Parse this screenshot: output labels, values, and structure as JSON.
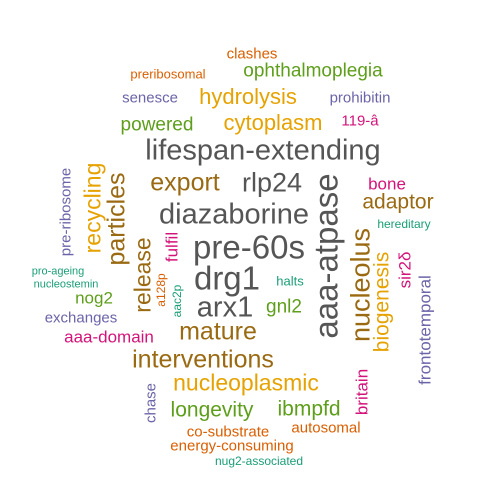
{
  "palette": {
    "gray": "#555555",
    "brown": "#9A6A12",
    "gold": "#E6A200",
    "green": "#5E9E1B",
    "orange": "#D95F02",
    "purple": "#6B64A8",
    "pink": "#D4137A",
    "teal": "#1A9E77"
  },
  "words": [
    {
      "id": "clashes",
      "text": "clashes",
      "color": "orange"
    },
    {
      "id": "preribosomal",
      "text": "preribosomal",
      "color": "orange"
    },
    {
      "id": "ophthalmoplegia",
      "text": "ophthalmoplegia",
      "color": "green"
    },
    {
      "id": "senesce",
      "text": "senesce",
      "color": "purple"
    },
    {
      "id": "hydrolysis",
      "text": "hydrolysis",
      "color": "gold"
    },
    {
      "id": "prohibitin",
      "text": "prohibitin",
      "color": "purple"
    },
    {
      "id": "powered",
      "text": "powered",
      "color": "green"
    },
    {
      "id": "cytoplasm",
      "text": "cytoplasm",
      "color": "gold"
    },
    {
      "id": "119-a",
      "text": "119-â",
      "color": "pink"
    },
    {
      "id": "lifespan-extending",
      "text": "lifespan-extending",
      "color": "gray"
    },
    {
      "id": "export",
      "text": "export",
      "color": "brown"
    },
    {
      "id": "rlp24",
      "text": "rlp24",
      "color": "gray"
    },
    {
      "id": "bone",
      "text": "bone",
      "color": "pink"
    },
    {
      "id": "adaptor",
      "text": "adaptor",
      "color": "brown"
    },
    {
      "id": "diazaborine",
      "text": "diazaborine",
      "color": "gray"
    },
    {
      "id": "hereditary",
      "text": "hereditary",
      "color": "teal"
    },
    {
      "id": "pre-60s",
      "text": "pre-60s",
      "color": "gray"
    },
    {
      "id": "drg1",
      "text": "drg1",
      "color": "gray"
    },
    {
      "id": "halts",
      "text": "halts",
      "color": "teal"
    },
    {
      "id": "arx1",
      "text": "arx1",
      "color": "gray"
    },
    {
      "id": "gnl2",
      "text": "gnl2",
      "color": "green"
    },
    {
      "id": "mature",
      "text": "mature",
      "color": "brown"
    },
    {
      "id": "nog2",
      "text": "nog2",
      "color": "green"
    },
    {
      "id": "pro-ageing",
      "text": "pro-ageing",
      "color": "teal"
    },
    {
      "id": "nucleostemin",
      "text": "nucleostemin",
      "color": "teal"
    },
    {
      "id": "exchanges",
      "text": "exchanges",
      "color": "purple"
    },
    {
      "id": "aaa-domain",
      "text": "aaa-domain",
      "color": "pink"
    },
    {
      "id": "interventions",
      "text": "interventions",
      "color": "brown"
    },
    {
      "id": "nucleoplasmic",
      "text": "nucleoplasmic",
      "color": "gold"
    },
    {
      "id": "longevity",
      "text": "longevity",
      "color": "green"
    },
    {
      "id": "ibmpfd",
      "text": "ibmpfd",
      "color": "green"
    },
    {
      "id": "autosomal",
      "text": "autosomal",
      "color": "orange"
    },
    {
      "id": "co-substrate",
      "text": "co-substrate",
      "color": "orange"
    },
    {
      "id": "energy-consuming",
      "text": "energy-consuming",
      "color": "orange"
    },
    {
      "id": "nug2-associated",
      "text": "nug2-associated",
      "color": "teal"
    },
    {
      "id": "pre-ribosome",
      "text": "pre-ribosome",
      "color": "purple"
    },
    {
      "id": "recycling",
      "text": "recycling",
      "color": "gold"
    },
    {
      "id": "particles",
      "text": "particles",
      "color": "brown"
    },
    {
      "id": "release",
      "text": "release",
      "color": "brown"
    },
    {
      "id": "fulfil",
      "text": "fulfil",
      "color": "pink"
    },
    {
      "id": "a128p",
      "text": "a128p",
      "color": "orange"
    },
    {
      "id": "aac2p",
      "text": "aac2p",
      "color": "teal"
    },
    {
      "id": "chase",
      "text": "chase",
      "color": "purple"
    },
    {
      "id": "aaa-atpase",
      "text": "aaa-atpase",
      "color": "gray"
    },
    {
      "id": "nucleolus",
      "text": "nucleolus",
      "color": "brown"
    },
    {
      "id": "biogenesis",
      "text": "biogenesis",
      "color": "gold"
    },
    {
      "id": "sir2d",
      "text": "sir2δ",
      "color": "pink"
    },
    {
      "id": "frontotemporal",
      "text": "frontotemporal",
      "color": "purple"
    },
    {
      "id": "britain",
      "text": "britain",
      "color": "pink"
    }
  ]
}
